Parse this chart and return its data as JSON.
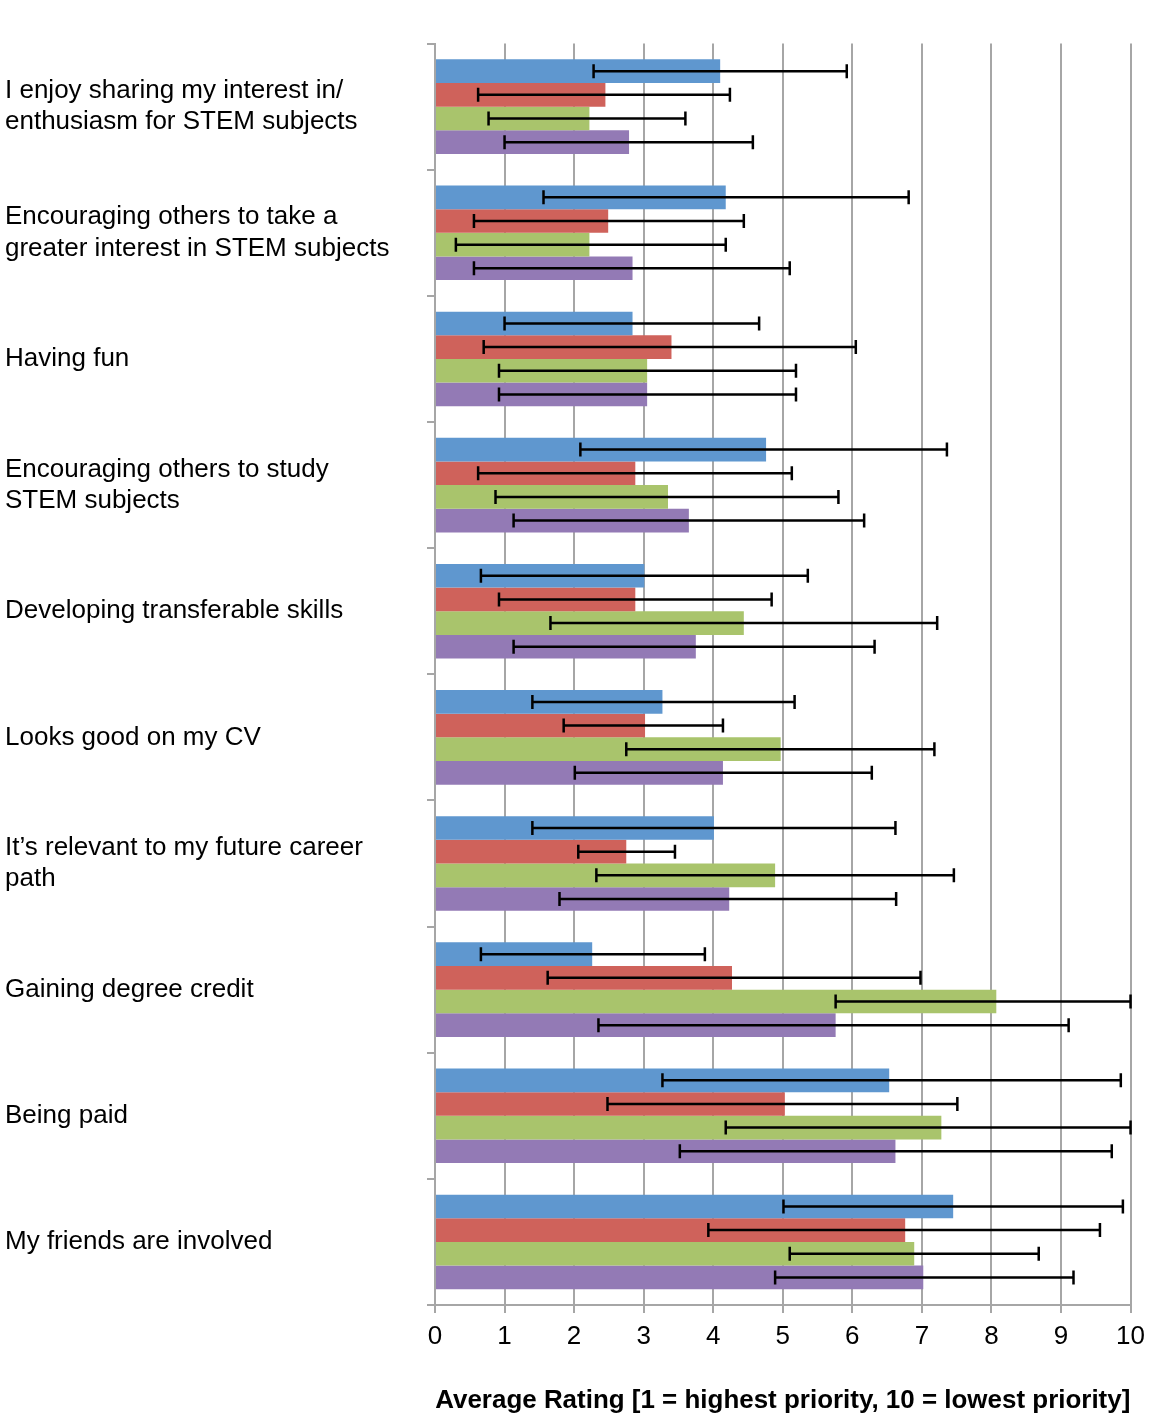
{
  "chart_data": {
    "type": "bar",
    "orientation": "horizontal",
    "xlabel": "Average Rating [1 = highest priority, 10 = lowest priority]",
    "categories": [
      "I enjoy sharing my interest in/ enthusiasm for STEM subjects",
      "Encouraging others to take a greater interest in STEM subjects",
      "Having fun",
      "Encouraging others to study STEM subjects",
      "Developing transferable skills",
      "Looks good on my CV",
      "It’s relevant to my future career path",
      "Gaining degree credit",
      "Being paid",
      "My friends are involved"
    ],
    "series": [
      {
        "color": "#5f97cf",
        "values": [
          4.1,
          4.18,
          2.84,
          4.76,
          3.01,
          3.27,
          4.01,
          2.26,
          6.53,
          7.45
        ],
        "errors": [
          [
            2.28,
            5.92
          ],
          [
            1.56,
            6.81
          ],
          [
            1.0,
            4.66
          ],
          [
            2.09,
            7.36
          ],
          [
            0.66,
            5.36
          ],
          [
            1.4,
            5.17
          ],
          [
            1.4,
            6.62
          ],
          [
            0.66,
            3.88
          ],
          [
            3.27,
            9.86
          ],
          [
            5.01,
            9.89
          ]
        ]
      },
      {
        "color": "#cf625b",
        "values": [
          2.45,
          2.49,
          3.4,
          2.88,
          2.88,
          3.02,
          2.75,
          4.27,
          5.03,
          6.76
        ],
        "errors": [
          [
            0.62,
            4.24
          ],
          [
            0.56,
            4.44
          ],
          [
            0.7,
            6.05
          ],
          [
            0.62,
            5.13
          ],
          [
            0.92,
            4.84
          ],
          [
            1.85,
            4.14
          ],
          [
            2.06,
            3.45
          ],
          [
            1.62,
            6.98
          ],
          [
            2.48,
            7.51
          ],
          [
            3.93,
            9.56
          ]
        ]
      },
      {
        "color": "#a9c46c",
        "values": [
          2.22,
          2.22,
          3.05,
          3.35,
          4.44,
          4.97,
          4.89,
          8.07,
          7.28,
          6.89
        ],
        "errors": [
          [
            0.77,
            3.6
          ],
          [
            0.3,
            4.18
          ],
          [
            0.92,
            5.19
          ],
          [
            0.87,
            5.8
          ],
          [
            1.66,
            7.22
          ],
          [
            2.75,
            7.18
          ],
          [
            2.32,
            7.46
          ],
          [
            5.76,
            10
          ],
          [
            4.18,
            10
          ],
          [
            5.1,
            8.68
          ]
        ]
      },
      {
        "color": "#937ab5",
        "values": [
          2.79,
          2.84,
          3.05,
          3.65,
          3.75,
          4.14,
          4.23,
          5.76,
          6.62,
          7.02
        ],
        "errors": [
          [
            1.0,
            4.57
          ],
          [
            0.56,
            5.1
          ],
          [
            0.92,
            5.19
          ],
          [
            1.13,
            6.17
          ],
          [
            1.13,
            6.32
          ],
          [
            2.01,
            6.28
          ],
          [
            1.79,
            6.63
          ],
          [
            2.35,
            9.11
          ],
          [
            3.52,
            9.73
          ],
          [
            4.89,
            9.18
          ]
        ]
      }
    ],
    "xlim": [
      0,
      10
    ],
    "xticks": [
      0,
      1,
      2,
      3,
      4,
      5,
      6,
      7,
      8,
      9,
      10
    ],
    "grid": "x",
    "legend": false
  }
}
